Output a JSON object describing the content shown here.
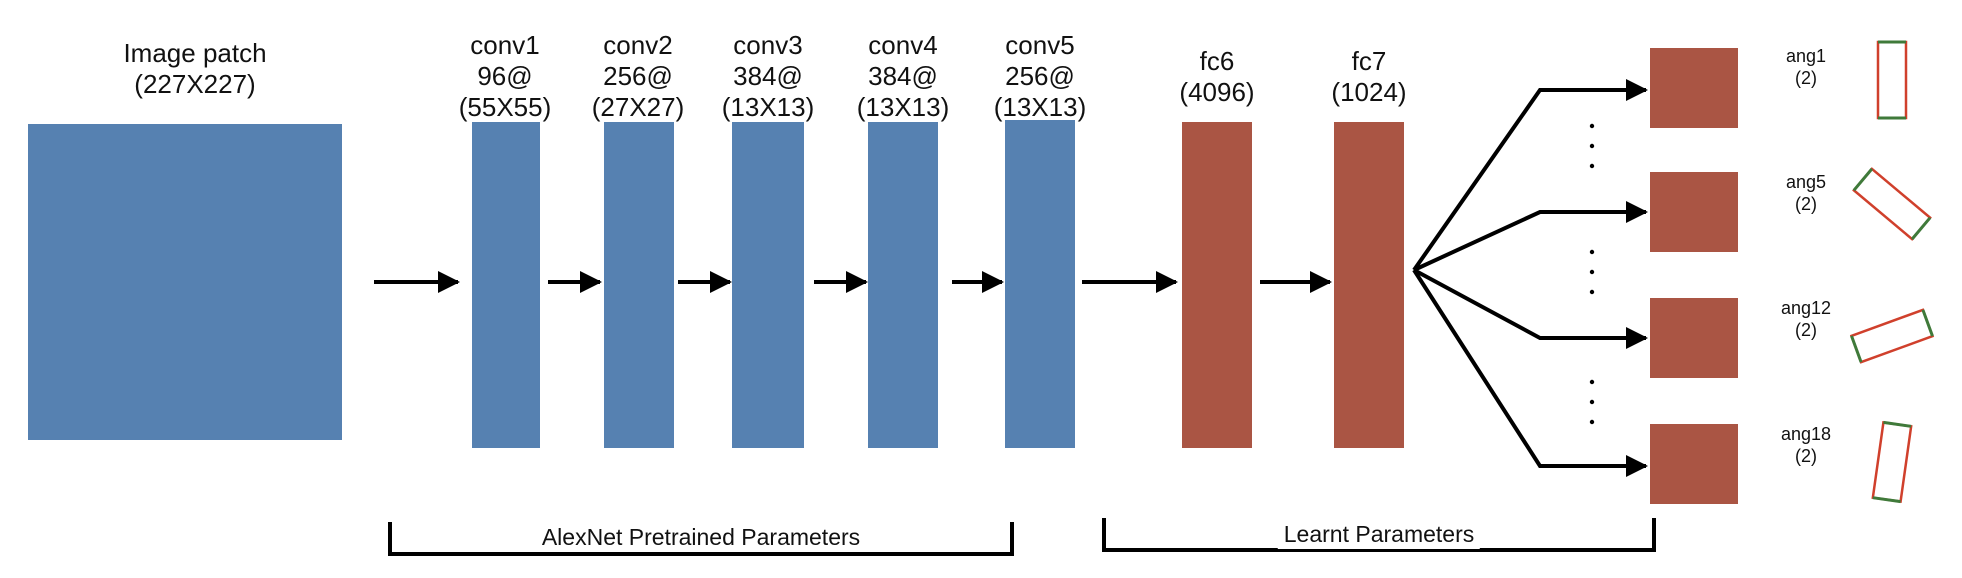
{
  "colors": {
    "conv": "#5681b1",
    "fc": "#aa5544",
    "arrow": "#000000",
    "box_red": "#d0402c",
    "box_green": "#3f7a3a"
  },
  "input": {
    "title": "Image patch",
    "size": "(227X227)"
  },
  "conv_layers": [
    {
      "name": "conv1",
      "filters": "96@",
      "size": "(55X55)"
    },
    {
      "name": "conv2",
      "filters": "256@",
      "size": "(27X27)"
    },
    {
      "name": "conv3",
      "filters": "384@",
      "size": "(13X13)"
    },
    {
      "name": "conv4",
      "filters": "384@",
      "size": "(13X13)"
    },
    {
      "name": "conv5",
      "filters": "256@",
      "size": "(13X13)"
    }
  ],
  "fc_layers": [
    {
      "name": "fc6",
      "size": "(4096)"
    },
    {
      "name": "fc7",
      "size": "(1024)"
    }
  ],
  "outputs": [
    {
      "name": "ang1",
      "size": "(2)",
      "angle_deg": 0
    },
    {
      "name": "ang5",
      "size": "(2)",
      "angle_deg": -50
    },
    {
      "name": "ang12",
      "size": "(2)",
      "angle_deg": 70
    },
    {
      "name": "ang18",
      "size": "(2)",
      "angle_deg": 8
    }
  ],
  "brackets": {
    "pretrained": "AlexNet Pretrained Parameters",
    "learnt": "Learnt Parameters"
  }
}
